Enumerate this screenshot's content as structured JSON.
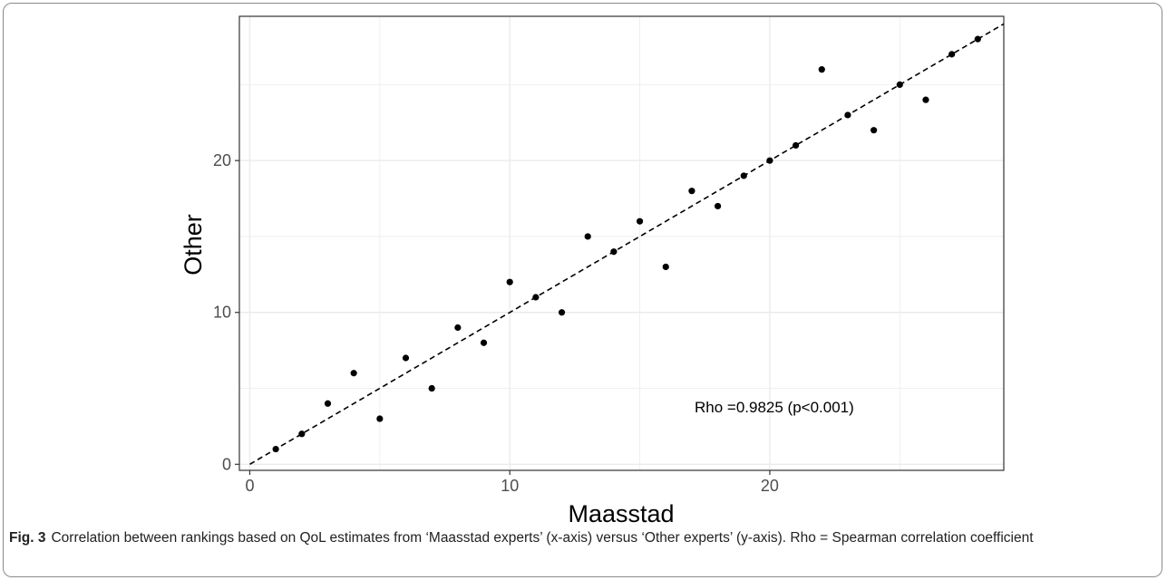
{
  "chart_data": {
    "type": "scatter",
    "title": "",
    "xlabel": "Maasstad",
    "ylabel": "Other",
    "xlim": [
      -0.4,
      29
    ],
    "ylim": [
      -0.4,
      29.5
    ],
    "xticks": [
      0,
      10,
      20
    ],
    "yticks": [
      0,
      10,
      20
    ],
    "grid": true,
    "reference_line": {
      "style": "dashed",
      "from": [
        0,
        0
      ],
      "to": [
        29.5,
        29.5
      ]
    },
    "annotation": "Rho =0.9825 (p<0.001)",
    "points": [
      {
        "x": 1,
        "y": 1
      },
      {
        "x": 2,
        "y": 2
      },
      {
        "x": 3,
        "y": 4
      },
      {
        "x": 4,
        "y": 6
      },
      {
        "x": 5,
        "y": 3
      },
      {
        "x": 6,
        "y": 7
      },
      {
        "x": 7,
        "y": 5
      },
      {
        "x": 8,
        "y": 9
      },
      {
        "x": 9,
        "y": 8
      },
      {
        "x": 10,
        "y": 12
      },
      {
        "x": 11,
        "y": 11
      },
      {
        "x": 12,
        "y": 10
      },
      {
        "x": 13,
        "y": 15
      },
      {
        "x": 14,
        "y": 14
      },
      {
        "x": 15,
        "y": 16
      },
      {
        "x": 16,
        "y": 13
      },
      {
        "x": 17,
        "y": 18
      },
      {
        "x": 18,
        "y": 17
      },
      {
        "x": 19,
        "y": 19
      },
      {
        "x": 20,
        "y": 20
      },
      {
        "x": 21,
        "y": 21
      },
      {
        "x": 22,
        "y": 26
      },
      {
        "x": 23,
        "y": 23
      },
      {
        "x": 24,
        "y": 22
      },
      {
        "x": 25,
        "y": 25
      },
      {
        "x": 26,
        "y": 24
      },
      {
        "x": 27,
        "y": 27
      },
      {
        "x": 28,
        "y": 28
      }
    ],
    "colors": {
      "point": "#000000",
      "grid": "#ebebeb",
      "axis": "#333333",
      "tick_label": "#4d4d4d"
    }
  },
  "caption": {
    "label": "Fig. 3",
    "text": "Correlation between rankings based on QoL estimates from ‘Maasstad experts’ (x-axis) versus ‘Other experts’ (y-axis). Rho = Spearman correlation coefficient"
  }
}
